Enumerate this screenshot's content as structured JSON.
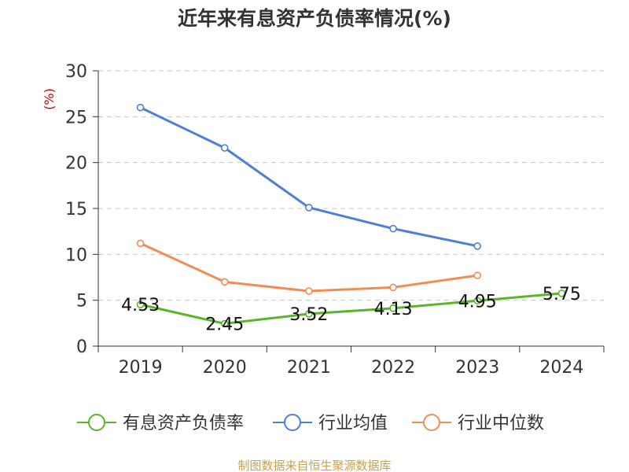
{
  "chart_data": {
    "type": "line",
    "title": "近年来有息资产负债率情况(%)",
    "ylabel": "(%)",
    "xlabel": "",
    "ylim": [
      0,
      30
    ],
    "yticks": [
      "0",
      "5",
      "10",
      "15",
      "20",
      "25",
      "30"
    ],
    "categories": [
      "2019",
      "2020",
      "2021",
      "2022",
      "2023",
      "2024"
    ],
    "grid": true,
    "legend_position": "bottom",
    "series": [
      {
        "name": "有息资产负债率",
        "color": "#5ab52a",
        "values": [
          4.53,
          2.45,
          3.52,
          4.13,
          4.95,
          5.75
        ],
        "labels": [
          "4.53",
          "2.45",
          "3.52",
          "4.13",
          "4.95",
          "5.75"
        ]
      },
      {
        "name": "行业均值",
        "color": "#4e7fd8",
        "values": [
          26.0,
          21.6,
          15.1,
          12.8,
          10.9,
          null
        ]
      },
      {
        "name": "行业中位数",
        "color": "#f28c55",
        "values": [
          11.2,
          7.0,
          6.0,
          6.4,
          7.7,
          null
        ]
      }
    ]
  },
  "footer": {
    "source": "制图数据来自恒生聚源数据库"
  }
}
